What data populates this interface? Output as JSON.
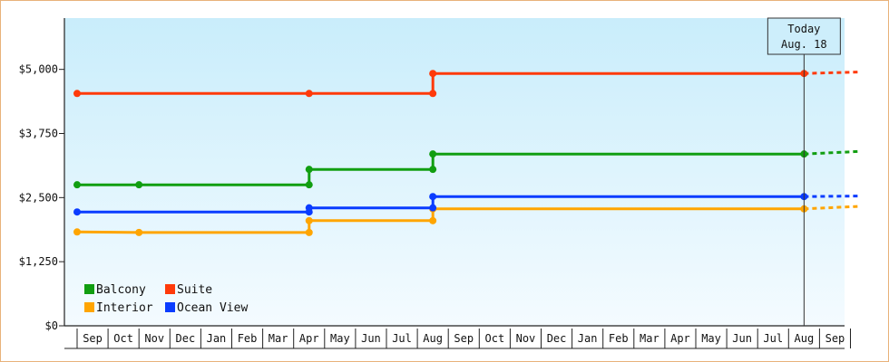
{
  "chart_data": {
    "type": "line",
    "title": "",
    "xlabel": "",
    "ylabel": "",
    "ylim": [
      0,
      6000
    ],
    "yticks": [
      {
        "value": 0,
        "label": "$0"
      },
      {
        "value": 1250,
        "label": "$1,250"
      },
      {
        "value": 2500,
        "label": "$2,500"
      },
      {
        "value": 3750,
        "label": "$3,750"
      },
      {
        "value": 5000,
        "label": "$5,000"
      }
    ],
    "months": [
      "Sep",
      "Oct",
      "Nov",
      "Dec",
      "Jan",
      "Feb",
      "Mar",
      "Apr",
      "May",
      "Jun",
      "Jul",
      "Aug",
      "Sep",
      "Oct",
      "Nov",
      "Dec",
      "Jan",
      "Feb",
      "Mar",
      "Apr",
      "May",
      "Jun",
      "Jul",
      "Aug",
      "Sep"
    ],
    "today": {
      "line1": "Today",
      "line2": "Aug. 18",
      "month_index": 23.5
    },
    "grid": false,
    "legend_position": "bottom-left",
    "series": [
      {
        "name": "Balcony",
        "color": "#119e11",
        "points": [
          [
            0,
            2750
          ],
          [
            2,
            2750
          ],
          [
            7.5,
            2750
          ],
          [
            7.5,
            3050
          ],
          [
            11.5,
            3050
          ],
          [
            11.5,
            3350
          ],
          [
            23.5,
            3350
          ]
        ],
        "projection": [
          [
            23.5,
            3350
          ],
          [
            25.3,
            3400
          ]
        ]
      },
      {
        "name": "Suite",
        "color": "#ff3a0a",
        "points": [
          [
            0,
            4530
          ],
          [
            7.5,
            4530
          ],
          [
            11.5,
            4530
          ],
          [
            11.5,
            4920
          ],
          [
            23.5,
            4920
          ]
        ],
        "projection": [
          [
            23.5,
            4920
          ],
          [
            25.3,
            4950
          ]
        ]
      },
      {
        "name": "Interior",
        "color": "#ffa500",
        "points": [
          [
            0,
            1830
          ],
          [
            2,
            1820
          ],
          [
            7.5,
            1820
          ],
          [
            7.5,
            2050
          ],
          [
            11.5,
            2050
          ],
          [
            11.5,
            2280
          ],
          [
            23.5,
            2280
          ]
        ],
        "projection": [
          [
            23.5,
            2280
          ],
          [
            25.3,
            2330
          ]
        ]
      },
      {
        "name": "Ocean View",
        "color": "#0a3cff",
        "points": [
          [
            0,
            2220
          ],
          [
            7.5,
            2220
          ],
          [
            7.5,
            2300
          ],
          [
            11.5,
            2300
          ],
          [
            11.5,
            2520
          ],
          [
            23.5,
            2520
          ]
        ],
        "projection": [
          [
            23.5,
            2520
          ],
          [
            25.3,
            2530
          ]
        ]
      }
    ]
  }
}
